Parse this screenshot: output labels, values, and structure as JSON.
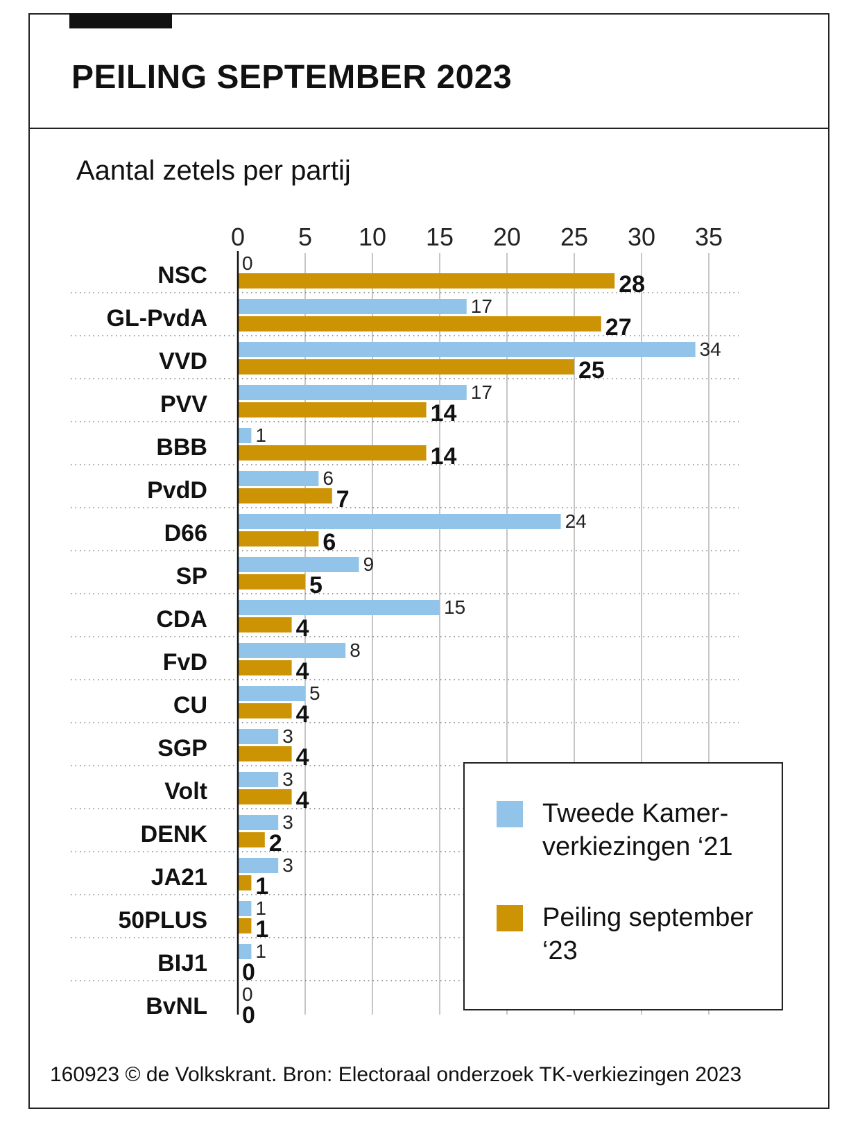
{
  "title": "PEILING SEPTEMBER 2023",
  "subtitle": "Aantal zetels per partij",
  "source": "160923 © de Volkskrant. Bron: Electoraal onderzoek TK-verkiezingen 2023",
  "colors": {
    "tk21": "#92c4ea",
    "peiling": "#cc9405"
  },
  "legend": {
    "tk21_label": "Tweede Kamer-verkiezingen ‘21",
    "peiling_label": "Peiling september ‘23"
  },
  "chart_data": {
    "type": "bar",
    "orientation": "horizontal",
    "xlim": [
      0,
      35
    ],
    "ticks": [
      0,
      5,
      10,
      15,
      20,
      25,
      30,
      35
    ],
    "grid": true,
    "legend_position": "bottom-right",
    "categories": [
      "NSC",
      "GL-PvdA",
      "VVD",
      "PVV",
      "BBB",
      "PvdD",
      "D66",
      "SP",
      "CDA",
      "FvD",
      "CU",
      "SGP",
      "Volt",
      "DENK",
      "JA21",
      "50PLUS",
      "BIJ1",
      "BvNL"
    ],
    "series": [
      {
        "name": "Tweede Kamer-verkiezingen ‘21",
        "values": [
          0,
          17,
          34,
          17,
          1,
          6,
          24,
          9,
          15,
          8,
          5,
          3,
          3,
          3,
          3,
          1,
          1,
          0
        ]
      },
      {
        "name": "Peiling september ‘23",
        "values": [
          28,
          27,
          25,
          14,
          14,
          7,
          6,
          5,
          4,
          4,
          4,
          4,
          4,
          2,
          1,
          1,
          0,
          0
        ]
      }
    ]
  }
}
